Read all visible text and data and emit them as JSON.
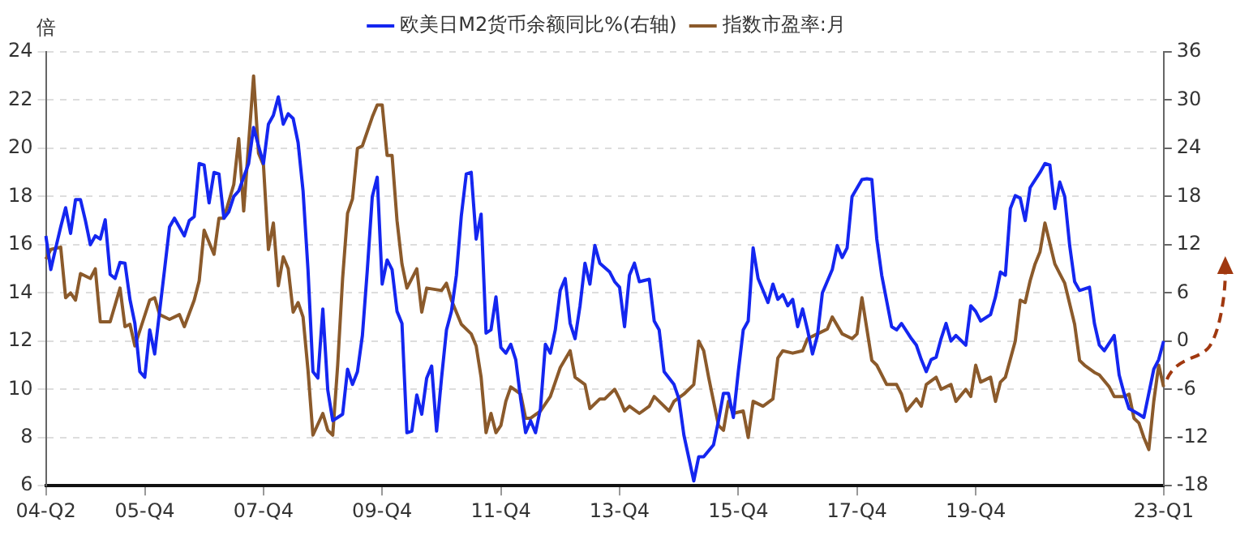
{
  "chart_data": {
    "type": "line",
    "ylabel": "倍",
    "legend": "top",
    "grid": "y",
    "categories": [
      "04-Q2",
      null,
      null,
      null,
      null,
      null,
      null,
      null,
      null,
      null,
      null,
      null,
      null,
      null,
      null,
      null,
      null,
      null,
      null,
      null,
      "05-Q4",
      null,
      null,
      null,
      null,
      null,
      null,
      null,
      null,
      null,
      null,
      null,
      null,
      null,
      null,
      null,
      null,
      null,
      null,
      null,
      null,
      null,
      null,
      null,
      "07-Q4",
      null,
      null,
      null,
      null,
      null,
      null,
      null,
      null,
      null,
      null,
      null,
      null,
      null,
      null,
      null,
      null,
      null,
      null,
      null,
      null,
      null,
      null,
      null,
      "09-Q4",
      null,
      null,
      null,
      null,
      null,
      null,
      null,
      null,
      null,
      null,
      null,
      null,
      null,
      null,
      null,
      null,
      null,
      null,
      null,
      null,
      null,
      null,
      null,
      "11-Q4",
      null,
      null,
      null,
      null,
      null,
      null,
      null,
      null,
      null,
      null,
      null,
      null,
      null,
      null,
      null,
      null,
      null,
      null,
      null,
      null,
      null,
      null,
      null,
      "13-Q4",
      null,
      null,
      null,
      null,
      null,
      null,
      null,
      null,
      null,
      null,
      null,
      null,
      null,
      null,
      null,
      null,
      null,
      null,
      null,
      null,
      null,
      null,
      null,
      "15-Q4",
      null,
      null,
      null,
      null,
      null,
      null,
      null,
      null,
      null,
      null,
      null,
      null,
      null,
      null,
      null,
      null,
      null,
      null,
      null,
      null,
      null,
      null,
      null,
      "17-Q4",
      null,
      null,
      null,
      null,
      null,
      null,
      null,
      null,
      null,
      null,
      null,
      null,
      null,
      null,
      null,
      null,
      null,
      null,
      null,
      null,
      null,
      null,
      null,
      "19-Q4",
      null,
      null,
      null,
      null,
      null,
      null,
      null,
      null,
      null,
      null,
      null,
      null,
      null,
      null,
      null,
      null,
      null,
      null,
      null,
      null,
      null,
      null,
      null,
      null,
      null,
      null,
      null,
      null,
      null,
      null,
      null,
      null,
      null,
      null,
      null,
      null,
      null,
      "23-Q1"
    ],
    "ylim": [
      6,
      24
    ],
    "yticks": [
      6,
      8,
      10,
      12,
      14,
      16,
      18,
      20,
      22,
      24
    ],
    "y2lim": [
      -18,
      36
    ],
    "y2ticks": [
      -18,
      -12,
      -6,
      0,
      6,
      12,
      18,
      24,
      30,
      36
    ],
    "series": [
      {
        "name": "欧美日M2货币余额同比%(右轴)",
        "color": "#1426f0",
        "axis": "y2",
        "values": [
          13.1,
          8.9,
          11.6,
          14.2,
          16.6,
          13.4,
          17.6,
          17.6,
          15.0,
          12.0,
          13.1,
          12.7,
          15.1,
          8.3,
          7.8,
          9.8,
          9.7,
          5.2,
          2.2,
          -3.8,
          -4.5,
          1.4,
          -1.6,
          3.7,
          8.9,
          14.2,
          15.3,
          null,
          13.1,
          15.0,
          15.5,
          22.1,
          21.9,
          17.2,
          21.0,
          20.8,
          15.3,
          16.1,
          18.0,
          18.7,
          null,
          22.1,
          26.6,
          24.3,
          22.1,
          27.0,
          28.1,
          30.4,
          27.0,
          28.3,
          27.7,
          24.7,
          18.7,
          8.9,
          -3.8,
          -4.6,
          4.0,
          -6.1,
          -9.9,
          -9.5,
          -9.1,
          -3.5,
          -5.4,
          -3.8,
          0.7,
          8.9,
          18.0,
          20.4,
          7.1,
          10.1,
          8.9,
          3.7,
          2.2,
          -11.4,
          -11.2,
          -6.7,
          -9.1,
          -4.6,
          -3.1,
          -11.2,
          -4.6,
          1.4,
          3.7,
          8.2,
          15.6,
          20.8,
          21.0,
          12.7,
          15.8,
          1.0,
          1.4,
          5.5,
          -0.8,
          -1.5,
          -0.4,
          -2.3,
          -7.2,
          -11.4,
          -9.9,
          -11.4,
          -8.4,
          -0.4,
          -1.5,
          1.4,
          6.3,
          7.8,
          2.2,
          0.3,
          4.4,
          9.7,
          7.1,
          11.9,
          9.7,
          null,
          8.6,
          7.4,
          6.7,
          1.8,
          8.2,
          9.7,
          7.4,
          null,
          7.7,
          2.5,
          1.4,
          -3.8,
          null,
          -5.4,
          -7.2,
          -11.7,
          null,
          -17.4,
          -14.4,
          -14.4,
          null,
          -12.9,
          -9.9,
          -6.5,
          -6.5,
          -9.5,
          -3.8,
          1.4,
          2.5,
          11.6,
          7.8,
          6.3,
          4.8,
          7.1,
          5.2,
          5.8,
          4.4,
          5.2,
          1.8,
          4.0,
          1.4,
          -1.6,
          0.7,
          6.0,
          null,
          8.9,
          11.9,
          10.4,
          11.6,
          18.0,
          null,
          20.1,
          20.2,
          20.1,
          12.7,
          8.2,
          null,
          1.8,
          1.4,
          2.2,
          null,
          0.3,
          -0.5,
          -2.3,
          -3.8,
          -2.3,
          -2.0,
          0.3,
          2.2,
          0.0,
          0.7,
          null,
          -0.5,
          4.4,
          3.7,
          2.5,
          null,
          3.3,
          5.5,
          8.6,
          8.2,
          16.5,
          18.1,
          17.8,
          15.0,
          19.1,
          null,
          21.0,
          22.1,
          21.9,
          16.5,
          19.8,
          18.0,
          11.9,
          7.4,
          6.3,
          null,
          6.7,
          2.2,
          -0.5,
          -1.2,
          null,
          0.7,
          -4.2,
          -6.5,
          -8.4,
          null,
          -9.1,
          -9.5,
          null,
          -3.5,
          -2.3,
          0.0
        ]
      },
      {
        "name": "指数市盈率:月",
        "color": "#8b5a2b",
        "axis": "y",
        "values": [
          15.4,
          15.8,
          null,
          15.9,
          13.8,
          14.0,
          13.7,
          14.8,
          null,
          14.6,
          15.0,
          12.8,
          null,
          12.8,
          null,
          14.2,
          12.6,
          12.7,
          11.8,
          null,
          null,
          13.7,
          13.8,
          13.1,
          null,
          12.9,
          null,
          13.1,
          12.6,
          null,
          13.7,
          14.5,
          16.6,
          null,
          15.6,
          17.1,
          17.1,
          null,
          18.5,
          20.4,
          17.4,
          null,
          23.0,
          19.8,
          19.3,
          15.8,
          16.9,
          14.3,
          15.5,
          15.0,
          13.2,
          13.6,
          13.0,
          10.8,
          8.1,
          null,
          9.0,
          8.3,
          8.1,
          11.0,
          14.6,
          17.3,
          17.9,
          20.0,
          20.1,
          null,
          21.3,
          21.8,
          21.8,
          19.7,
          19.7,
          17.0,
          15.2,
          14.2,
          null,
          15.0,
          13.2,
          14.2,
          null,
          null,
          14.1,
          14.4,
          13.7,
          null,
          12.7,
          null,
          12.3,
          11.8,
          10.5,
          8.2,
          9.0,
          8.2,
          8.5,
          9.5,
          10.1,
          null,
          9.8,
          8.8,
          8.8,
          null,
          9.1,
          null,
          9.7,
          10.3,
          10.9,
          null,
          11.6,
          10.5,
          null,
          10.2,
          9.2,
          null,
          9.6,
          9.6,
          null,
          10.0,
          9.6,
          9.1,
          9.3,
          null,
          9.0,
          null,
          9.3,
          9.7,
          9.5,
          null,
          9.1,
          9.5,
          null,
          9.8,
          null,
          10.2,
          12.0,
          11.6,
          10.5,
          null,
          8.5,
          8.3,
          9.5,
          9.0,
          null,
          9.1,
          8.0,
          9.5,
          null,
          9.3,
          null,
          9.6,
          11.3,
          11.6,
          null,
          11.5,
          null,
          11.6,
          12.1,
          null,
          12.3,
          null,
          12.5,
          13.0,
          null,
          12.3,
          null,
          12.1,
          12.3,
          13.8,
          null,
          11.2,
          11.0,
          null,
          10.2,
          null,
          10.2,
          9.8,
          9.1,
          null,
          9.6,
          9.3,
          10.2,
          null,
          10.5,
          10.0,
          null,
          10.2,
          9.5,
          null,
          10.0,
          9.7,
          11.0,
          10.3,
          null,
          10.5,
          9.5,
          10.3,
          10.5,
          null,
          12.0,
          13.7,
          13.6,
          14.5,
          15.2,
          15.7,
          16.9,
          null,
          15.2,
          14.8,
          14.4,
          null,
          12.7,
          11.2,
          11.0,
          null,
          10.7,
          10.6,
          null,
          10.1,
          9.7,
          null,
          9.7,
          9.8,
          8.8,
          8.6,
          8.0,
          7.5,
          9.5,
          11.0,
          10.1
        ]
      }
    ]
  }
}
